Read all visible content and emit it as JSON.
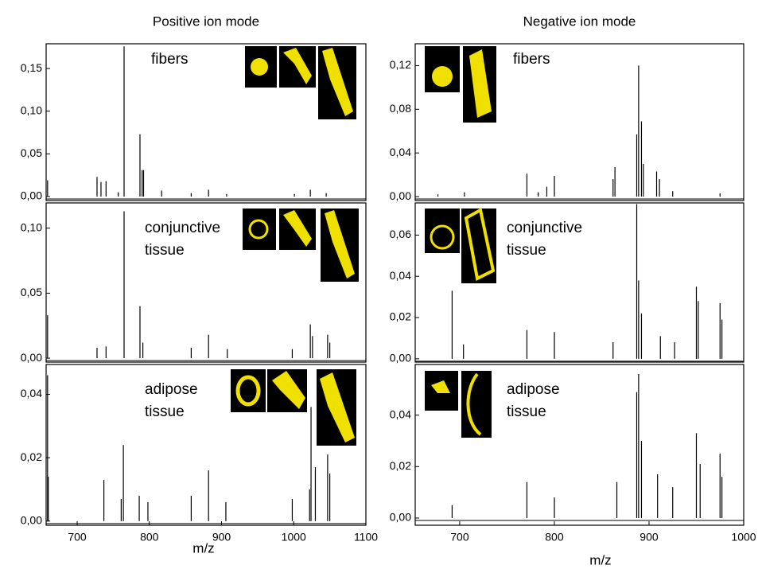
{
  "chart_data": [
    {
      "type": "stem",
      "title": "Positive ion mode",
      "annotation": [
        "fibers"
      ],
      "color": "#000000",
      "x": [
        659,
        727.5,
        733,
        740,
        757,
        765,
        787,
        790,
        792,
        817,
        858,
        882,
        907,
        1001,
        1023,
        1045
      ],
      "values": [
        0.019,
        0.023,
        0.017,
        0.018,
        0.005,
        0.176,
        0.073,
        0.031,
        0.031,
        0.007,
        0.004,
        0.008,
        0.003,
        0.003,
        0.008,
        0.004
      ],
      "xlim": [
        657,
        1100
      ],
      "ylim": [
        -0.0047,
        0.179
      ],
      "yticks": [
        {
          "value": 0,
          "label": "0,00"
        },
        {
          "value": 0.05,
          "label": "0,05"
        },
        {
          "value": 0.1,
          "label": "0,10"
        },
        {
          "value": 0.15,
          "label": "0,15"
        }
      ]
    },
    {
      "type": "stem",
      "annotation": [
        "conjunctive",
        "tissue"
      ],
      "color": "#000000",
      "x": [
        659,
        727.5,
        740,
        765,
        787,
        791,
        858,
        882,
        908,
        998,
        1023,
        1026,
        1047,
        1050
      ],
      "values": [
        0.033,
        0.008,
        0.009,
        0.113,
        0.04,
        0.012,
        0.008,
        0.018,
        0.007,
        0.007,
        0.026,
        0.017,
        0.018,
        0.012
      ],
      "xlim": [
        657,
        1100
      ],
      "ylim": [
        -0.003,
        0.1194
      ],
      "yticks": [
        {
          "value": 0,
          "label": "0,00"
        },
        {
          "value": 0.05,
          "label": "0,05"
        },
        {
          "value": 0.1,
          "label": "0,10"
        }
      ]
    },
    {
      "type": "stem",
      "annotation": [
        "adipose",
        "tissue"
      ],
      "color": "#000000",
      "xlabel": "m/z",
      "x": [
        659,
        660,
        737,
        761,
        764,
        786,
        798,
        858,
        882,
        906,
        998,
        1022,
        1024,
        1030,
        1047,
        1050
      ],
      "values": [
        0.046,
        0.014,
        0.013,
        0.007,
        0.024,
        0.008,
        0.006,
        0.008,
        0.016,
        0.006,
        0.007,
        0.01,
        0.036,
        0.017,
        0.021,
        0.015
      ],
      "xlim": [
        657,
        1100
      ],
      "ylim": [
        -0.0013,
        0.0494
      ],
      "yticks": [
        {
          "value": 0,
          "label": "0,00"
        },
        {
          "value": 0.02,
          "label": "0,02"
        },
        {
          "value": 0.04,
          "label": "0,04"
        }
      ],
      "xticks": [
        700,
        800,
        900,
        1000,
        1100
      ]
    },
    {
      "type": "stem",
      "title": "Negative ion mode",
      "annotation": [
        "fibers"
      ],
      "color": "#000000",
      "x": [
        677,
        705,
        771,
        783,
        792,
        800,
        862,
        864,
        887,
        889,
        892,
        894,
        908,
        911,
        925,
        975
      ],
      "values": [
        0.002,
        0.004,
        0.021,
        0.004,
        0.009,
        0.019,
        0.016,
        0.027,
        0.057,
        0.12,
        0.069,
        0.03,
        0.023,
        0.016,
        0.005,
        0.003
      ],
      "xlim": [
        653,
        1000
      ],
      "ylim": [
        -0.0036,
        0.14
      ],
      "yticks": [
        {
          "value": 0,
          "label": "0,00"
        },
        {
          "value": 0.04,
          "label": "0,04"
        },
        {
          "value": 0.08,
          "label": "0,08"
        },
        {
          "value": 0.12,
          "label": "0,12"
        }
      ]
    },
    {
      "type": "stem",
      "annotation": [
        "conjunctive",
        "tissue"
      ],
      "color": "#000000",
      "x": [
        692,
        704,
        771,
        800,
        862,
        887,
        889,
        892,
        912,
        927,
        950,
        952,
        975,
        977
      ],
      "values": [
        0.033,
        0.007,
        0.014,
        0.013,
        0.008,
        0.075,
        0.038,
        0.022,
        0.011,
        0.008,
        0.035,
        0.028,
        0.027,
        0.019
      ],
      "xlim": [
        653,
        1000
      ],
      "ylim": [
        -0.0016,
        0.0756
      ],
      "yticks": [
        {
          "value": 0,
          "label": "0,00"
        },
        {
          "value": 0.02,
          "label": "0,02"
        },
        {
          "value": 0.04,
          "label": "0,04"
        },
        {
          "value": 0.06,
          "label": "0,06"
        }
      ]
    },
    {
      "type": "stem",
      "annotation": [
        "adipose",
        "tissue"
      ],
      "color": "#000000",
      "xlabel": "m/z",
      "x": [
        692,
        771,
        800,
        866,
        887,
        889,
        892,
        909,
        925,
        950,
        954,
        975,
        977
      ],
      "values": [
        0.005,
        0.014,
        0.008,
        0.014,
        0.049,
        0.056,
        0.03,
        0.017,
        0.012,
        0.033,
        0.021,
        0.025,
        0.016
      ],
      "xlim": [
        653,
        1000
      ],
      "ylim": [
        -0.0028,
        0.0597
      ],
      "yticks": [
        {
          "value": 0,
          "label": "0,00"
        },
        {
          "value": 0.02,
          "label": "0,02"
        },
        {
          "value": 0.04,
          "label": "0,04"
        }
      ],
      "xticks": [
        700,
        800,
        900,
        1000
      ]
    }
  ]
}
